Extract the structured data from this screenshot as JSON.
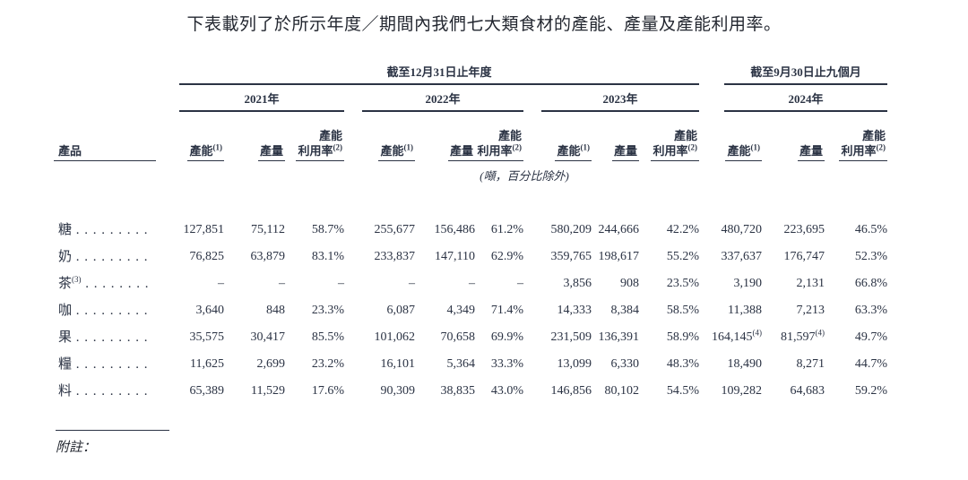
{
  "title": "下表載列了於所示年度／期間內我們七大類食材的產能、產量及產能利用率。",
  "table": {
    "period_year_end": "截至12月31日止年度",
    "period_nine_months": "截至9月30日止九個月",
    "years": [
      "2021年",
      "2022年",
      "2023年",
      "2024年"
    ],
    "product_header": "產品",
    "col_headers": {
      "capacity": "產能",
      "capacity_sup": "(1)",
      "volume": "產量",
      "util_line1": "產能",
      "util_line2": "利用率",
      "util_sup": "(2)"
    },
    "unit_note": "(噸，百分比除外)",
    "leader_dots": ". . . . . . . . . . . . . . . . . .",
    "rows": [
      {
        "label": "糖",
        "cells": [
          {
            "v": "127,851"
          },
          {
            "v": "75,112"
          },
          {
            "v": "58.7%"
          },
          {
            "v": "255,677"
          },
          {
            "v": "156,486"
          },
          {
            "v": "61.2%"
          },
          {
            "v": "580,209"
          },
          {
            "v": "244,666"
          },
          {
            "v": "42.2%"
          },
          {
            "v": "480,720"
          },
          {
            "v": "223,695"
          },
          {
            "v": "46.5%"
          }
        ]
      },
      {
        "label": "奶",
        "cells": [
          {
            "v": "76,825"
          },
          {
            "v": "63,879"
          },
          {
            "v": "83.1%"
          },
          {
            "v": "233,837"
          },
          {
            "v": "147,110"
          },
          {
            "v": "62.9%"
          },
          {
            "v": "359,765"
          },
          {
            "v": "198,617"
          },
          {
            "v": "55.2%"
          },
          {
            "v": "337,637"
          },
          {
            "v": "176,747"
          },
          {
            "v": "52.3%"
          }
        ]
      },
      {
        "label": "茶",
        "label_sup": "(3)",
        "cells": [
          {
            "v": "–"
          },
          {
            "v": "–"
          },
          {
            "v": "–"
          },
          {
            "v": "–"
          },
          {
            "v": "–"
          },
          {
            "v": "–"
          },
          {
            "v": "3,856"
          },
          {
            "v": "908"
          },
          {
            "v": "23.5%"
          },
          {
            "v": "3,190"
          },
          {
            "v": "2,131"
          },
          {
            "v": "66.8%"
          }
        ]
      },
      {
        "label": "咖",
        "cells": [
          {
            "v": "3,640"
          },
          {
            "v": "848"
          },
          {
            "v": "23.3%"
          },
          {
            "v": "6,087"
          },
          {
            "v": "4,349"
          },
          {
            "v": "71.4%"
          },
          {
            "v": "14,333"
          },
          {
            "v": "8,384"
          },
          {
            "v": "58.5%"
          },
          {
            "v": "11,388"
          },
          {
            "v": "7,213"
          },
          {
            "v": "63.3%"
          }
        ]
      },
      {
        "label": "果",
        "cells": [
          {
            "v": "35,575"
          },
          {
            "v": "30,417"
          },
          {
            "v": "85.5%"
          },
          {
            "v": "101,062"
          },
          {
            "v": "70,658"
          },
          {
            "v": "69.9%"
          },
          {
            "v": "231,509"
          },
          {
            "v": "136,391"
          },
          {
            "v": "58.9%"
          },
          {
            "v": "164,145",
            "sup": "(4)"
          },
          {
            "v": "81,597",
            "sup": "(4)"
          },
          {
            "v": "49.7%"
          }
        ]
      },
      {
        "label": "糧",
        "cells": [
          {
            "v": "11,625"
          },
          {
            "v": "2,699"
          },
          {
            "v": "23.2%"
          },
          {
            "v": "16,101"
          },
          {
            "v": "5,364"
          },
          {
            "v": "33.3%"
          },
          {
            "v": "13,099"
          },
          {
            "v": "6,330"
          },
          {
            "v": "48.3%"
          },
          {
            "v": "18,490"
          },
          {
            "v": "8,271"
          },
          {
            "v": "44.7%"
          }
        ]
      },
      {
        "label": "料",
        "cells": [
          {
            "v": "65,389"
          },
          {
            "v": "11,529"
          },
          {
            "v": "17.6%"
          },
          {
            "v": "90,309"
          },
          {
            "v": "38,835"
          },
          {
            "v": "43.0%"
          },
          {
            "v": "146,856"
          },
          {
            "v": "80,102"
          },
          {
            "v": "54.5%"
          },
          {
            "v": "109,282"
          },
          {
            "v": "64,683"
          },
          {
            "v": "59.2%"
          }
        ]
      }
    ],
    "footnote_label": "附註："
  }
}
